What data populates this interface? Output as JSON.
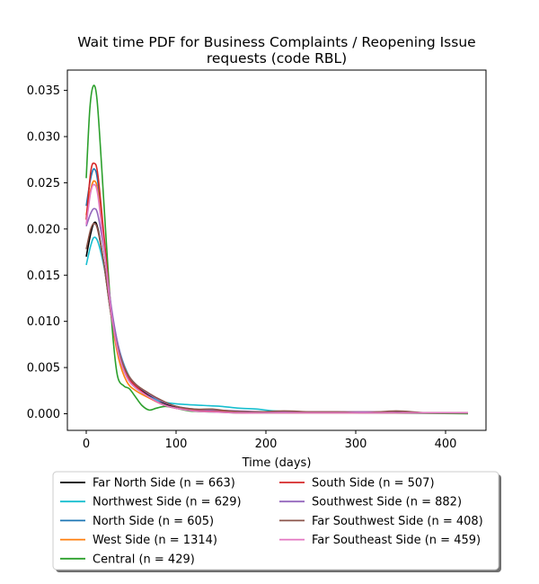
{
  "chart_data": {
    "type": "line",
    "title_lines": [
      "Wait time PDF for Business Complaints / Reopening Issue",
      "requests (code RBL)"
    ],
    "xlabel": "Time (days)",
    "ylabel": "",
    "xlim": [
      -21,
      445
    ],
    "ylim": [
      -0.0018,
      0.0372
    ],
    "xticks": [
      0,
      100,
      200,
      300,
      400
    ],
    "xtick_labels": [
      "0",
      "100",
      "200",
      "300",
      "400"
    ],
    "yticks": [
      0.0,
      0.005,
      0.01,
      0.015,
      0.02,
      0.025,
      0.03,
      0.035
    ],
    "ytick_labels": [
      "0.000",
      "0.005",
      "0.010",
      "0.015",
      "0.020",
      "0.025",
      "0.030",
      "0.035"
    ],
    "grid": false,
    "legend_placement": "below",
    "series": [
      {
        "name": "Far North Side (n = 663)",
        "color": "#000000",
        "points": [
          [
            0,
            0.017
          ],
          [
            5,
            0.0195
          ],
          [
            9,
            0.0207
          ],
          [
            13,
            0.02
          ],
          [
            20,
            0.016
          ],
          [
            28,
            0.0105
          ],
          [
            36,
            0.0065
          ],
          [
            45,
            0.0042
          ],
          [
            55,
            0.003
          ],
          [
            70,
            0.002
          ],
          [
            85,
            0.0012
          ],
          [
            100,
            0.0007
          ],
          [
            120,
            0.0004
          ],
          [
            140,
            0.0004
          ],
          [
            160,
            0.0003
          ],
          [
            190,
            0.0002
          ],
          [
            220,
            0.0002
          ],
          [
            260,
            0.0002
          ],
          [
            300,
            0.0002
          ],
          [
            340,
            0.0002
          ],
          [
            380,
            0.0001
          ],
          [
            425,
            0.0001
          ]
        ]
      },
      {
        "name": "Northwest Side (n = 629)",
        "color": "#17becf",
        "points": [
          [
            0,
            0.0161
          ],
          [
            5,
            0.0182
          ],
          [
            9,
            0.0191
          ],
          [
            14,
            0.0183
          ],
          [
            22,
            0.0148
          ],
          [
            30,
            0.01
          ],
          [
            38,
            0.0065
          ],
          [
            48,
            0.004
          ],
          [
            60,
            0.0025
          ],
          [
            75,
            0.0016
          ],
          [
            90,
            0.0012
          ],
          [
            110,
            0.001
          ],
          [
            130,
            0.0009
          ],
          [
            150,
            0.0008
          ],
          [
            170,
            0.0006
          ],
          [
            190,
            0.0005
          ],
          [
            210,
            0.0003
          ],
          [
            240,
            0.0002
          ],
          [
            270,
            0.0002
          ],
          [
            300,
            0.0002
          ],
          [
            340,
            0.0001
          ],
          [
            380,
            0.0001
          ],
          [
            425,
            0.0001
          ]
        ]
      },
      {
        "name": "North Side (n = 605)",
        "color": "#1f77b4",
        "points": [
          [
            0,
            0.0225
          ],
          [
            5,
            0.0255
          ],
          [
            9,
            0.0265
          ],
          [
            13,
            0.025
          ],
          [
            20,
            0.0185
          ],
          [
            28,
            0.011
          ],
          [
            36,
            0.0065
          ],
          [
            45,
            0.004
          ],
          [
            55,
            0.0028
          ],
          [
            70,
            0.0018
          ],
          [
            85,
            0.001
          ],
          [
            100,
            0.0006
          ],
          [
            120,
            0.0004
          ],
          [
            140,
            0.0003
          ],
          [
            170,
            0.0002
          ],
          [
            200,
            0.0002
          ],
          [
            240,
            0.0002
          ],
          [
            280,
            0.0002
          ],
          [
            320,
            0.0001
          ],
          [
            360,
            0.0001
          ],
          [
            425,
            0.0001
          ]
        ]
      },
      {
        "name": "West Side (n = 1314)",
        "color": "#ff7f0e",
        "points": [
          [
            0,
            0.0215
          ],
          [
            5,
            0.0243
          ],
          [
            9,
            0.0252
          ],
          [
            13,
            0.024
          ],
          [
            20,
            0.018
          ],
          [
            28,
            0.0105
          ],
          [
            36,
            0.006
          ],
          [
            45,
            0.0035
          ],
          [
            55,
            0.0025
          ],
          [
            70,
            0.0017
          ],
          [
            85,
            0.001
          ],
          [
            100,
            0.0006
          ],
          [
            120,
            0.0004
          ],
          [
            140,
            0.0003
          ],
          [
            170,
            0.0002
          ],
          [
            200,
            0.0002
          ],
          [
            240,
            0.0002
          ],
          [
            280,
            0.0002
          ],
          [
            320,
            0.0002
          ],
          [
            360,
            0.0001
          ],
          [
            425,
            0.0001
          ]
        ]
      },
      {
        "name": "Central (n = 429)",
        "color": "#2ca02c",
        "points": [
          [
            0,
            0.0255
          ],
          [
            4,
            0.033
          ],
          [
            8,
            0.0355
          ],
          [
            12,
            0.034
          ],
          [
            17,
            0.027
          ],
          [
            24,
            0.016
          ],
          [
            30,
            0.008
          ],
          [
            35,
            0.004
          ],
          [
            42,
            0.003
          ],
          [
            48,
            0.0027
          ],
          [
            55,
            0.0018
          ],
          [
            62,
            0.0009
          ],
          [
            70,
            0.0004
          ],
          [
            78,
            0.0006
          ],
          [
            88,
            0.0008
          ],
          [
            100,
            0.0006
          ],
          [
            115,
            0.0003
          ],
          [
            140,
            0.0002
          ],
          [
            170,
            0.0001
          ],
          [
            210,
            0.0001
          ],
          [
            260,
            0.0001
          ],
          [
            320,
            0.0001
          ],
          [
            425,
            0.0
          ]
        ]
      },
      {
        "name": "South Side (n = 507)",
        "color": "#d62728",
        "points": [
          [
            0,
            0.021
          ],
          [
            5,
            0.0262
          ],
          [
            9,
            0.0271
          ],
          [
            13,
            0.0258
          ],
          [
            20,
            0.019
          ],
          [
            28,
            0.0112
          ],
          [
            36,
            0.0068
          ],
          [
            45,
            0.0042
          ],
          [
            55,
            0.003
          ],
          [
            70,
            0.0018
          ],
          [
            85,
            0.001
          ],
          [
            100,
            0.0006
          ],
          [
            115,
            0.0004
          ],
          [
            130,
            0.0003
          ],
          [
            150,
            0.0002
          ],
          [
            170,
            0.0001
          ],
          [
            200,
            0.0001
          ],
          [
            240,
            0.0001
          ],
          [
            280,
            0.0001
          ],
          [
            320,
            0.0001
          ],
          [
            380,
            0.0001
          ],
          [
            425,
            0.0001
          ]
        ]
      },
      {
        "name": "Southwest Side (n = 882)",
        "color": "#9467bd",
        "points": [
          [
            0,
            0.0203
          ],
          [
            5,
            0.0217
          ],
          [
            9,
            0.0222
          ],
          [
            13,
            0.0215
          ],
          [
            20,
            0.0175
          ],
          [
            28,
            0.0115
          ],
          [
            36,
            0.0072
          ],
          [
            45,
            0.0045
          ],
          [
            55,
            0.0032
          ],
          [
            70,
            0.0021
          ],
          [
            85,
            0.0013
          ],
          [
            100,
            0.0008
          ],
          [
            120,
            0.0005
          ],
          [
            140,
            0.0004
          ],
          [
            170,
            0.0003
          ],
          [
            200,
            0.0002
          ],
          [
            240,
            0.0002
          ],
          [
            280,
            0.0002
          ],
          [
            320,
            0.0002
          ],
          [
            360,
            0.0001
          ],
          [
            425,
            0.0001
          ]
        ]
      },
      {
        "name": "Far Southwest Side (n = 408)",
        "color": "#8c564b",
        "points": [
          [
            0,
            0.0178
          ],
          [
            5,
            0.02
          ],
          [
            9,
            0.0206
          ],
          [
            13,
            0.0198
          ],
          [
            20,
            0.016
          ],
          [
            28,
            0.0105
          ],
          [
            36,
            0.0068
          ],
          [
            45,
            0.0045
          ],
          [
            55,
            0.0032
          ],
          [
            70,
            0.0022
          ],
          [
            85,
            0.0014
          ],
          [
            100,
            0.0008
          ],
          [
            120,
            0.0005
          ],
          [
            140,
            0.0005
          ],
          [
            160,
            0.0003
          ],
          [
            190,
            0.0002
          ],
          [
            220,
            0.0003
          ],
          [
            250,
            0.0002
          ],
          [
            280,
            0.0002
          ],
          [
            310,
            0.0001
          ],
          [
            345,
            0.0003
          ],
          [
            380,
            0.0001
          ],
          [
            425,
            0.0001
          ]
        ]
      },
      {
        "name": "Far Southeast Side (n = 459)",
        "color": "#e377c2",
        "points": [
          [
            0,
            0.0205
          ],
          [
            5,
            0.024
          ],
          [
            9,
            0.0248
          ],
          [
            13,
            0.0236
          ],
          [
            20,
            0.0178
          ],
          [
            28,
            0.0108
          ],
          [
            36,
            0.0065
          ],
          [
            45,
            0.004
          ],
          [
            55,
            0.0028
          ],
          [
            70,
            0.0018
          ],
          [
            85,
            0.001
          ],
          [
            100,
            0.0006
          ],
          [
            120,
            0.0003
          ],
          [
            140,
            0.0002
          ],
          [
            170,
            0.0001
          ],
          [
            210,
            0.0001
          ],
          [
            260,
            0.0001
          ],
          [
            320,
            0.0001
          ],
          [
            380,
            0.0001
          ],
          [
            425,
            0.0001
          ]
        ]
      }
    ]
  }
}
